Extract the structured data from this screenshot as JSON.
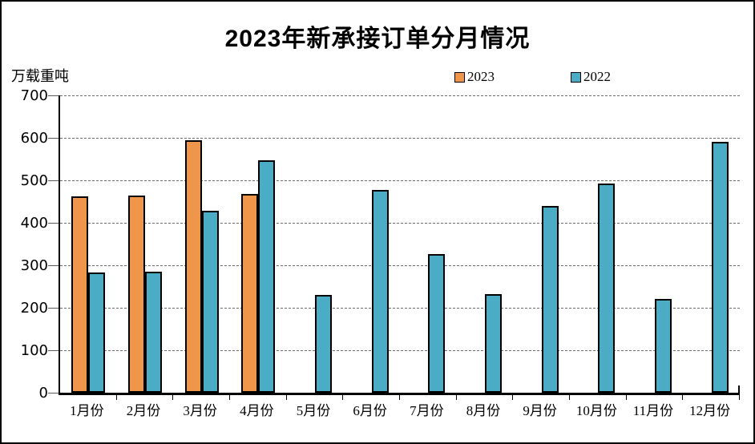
{
  "page": {
    "background_color": "#ffffff",
    "border_color": "#000000"
  },
  "header": {
    "title": "2023年新承接订单分月情况",
    "unit_label": "万载重吨"
  },
  "legend": {
    "items": [
      {
        "label": "2023",
        "color": "#F0964A"
      },
      {
        "label": "2022",
        "color": "#4BACC6"
      }
    ]
  },
  "chart_data": {
    "type": "bar",
    "title": "2023年新承接订单分月情况",
    "xlabel": "",
    "ylabel": "万载重吨",
    "categories": [
      "1月份",
      "2月份",
      "3月份",
      "4月份",
      "5月份",
      "6月份",
      "7月份",
      "8月份",
      "9月份",
      "10月份",
      "11月份",
      "12月份"
    ],
    "series": [
      {
        "name": "2023",
        "color": "#F0964A",
        "values": [
          462,
          464,
          595,
          468,
          null,
          null,
          null,
          null,
          null,
          null,
          null,
          null
        ]
      },
      {
        "name": "2022",
        "color": "#4BACC6",
        "values": [
          283,
          284,
          429,
          547,
          230,
          477,
          327,
          232,
          440,
          492,
          220,
          591
        ]
      }
    ],
    "ylim": [
      0,
      700
    ],
    "yticks": [
      0,
      100,
      200,
      300,
      400,
      500,
      600,
      700
    ],
    "grid": "horizontal-dashed",
    "legend_position": "top-center",
    "bar_border_color": "#000000"
  }
}
